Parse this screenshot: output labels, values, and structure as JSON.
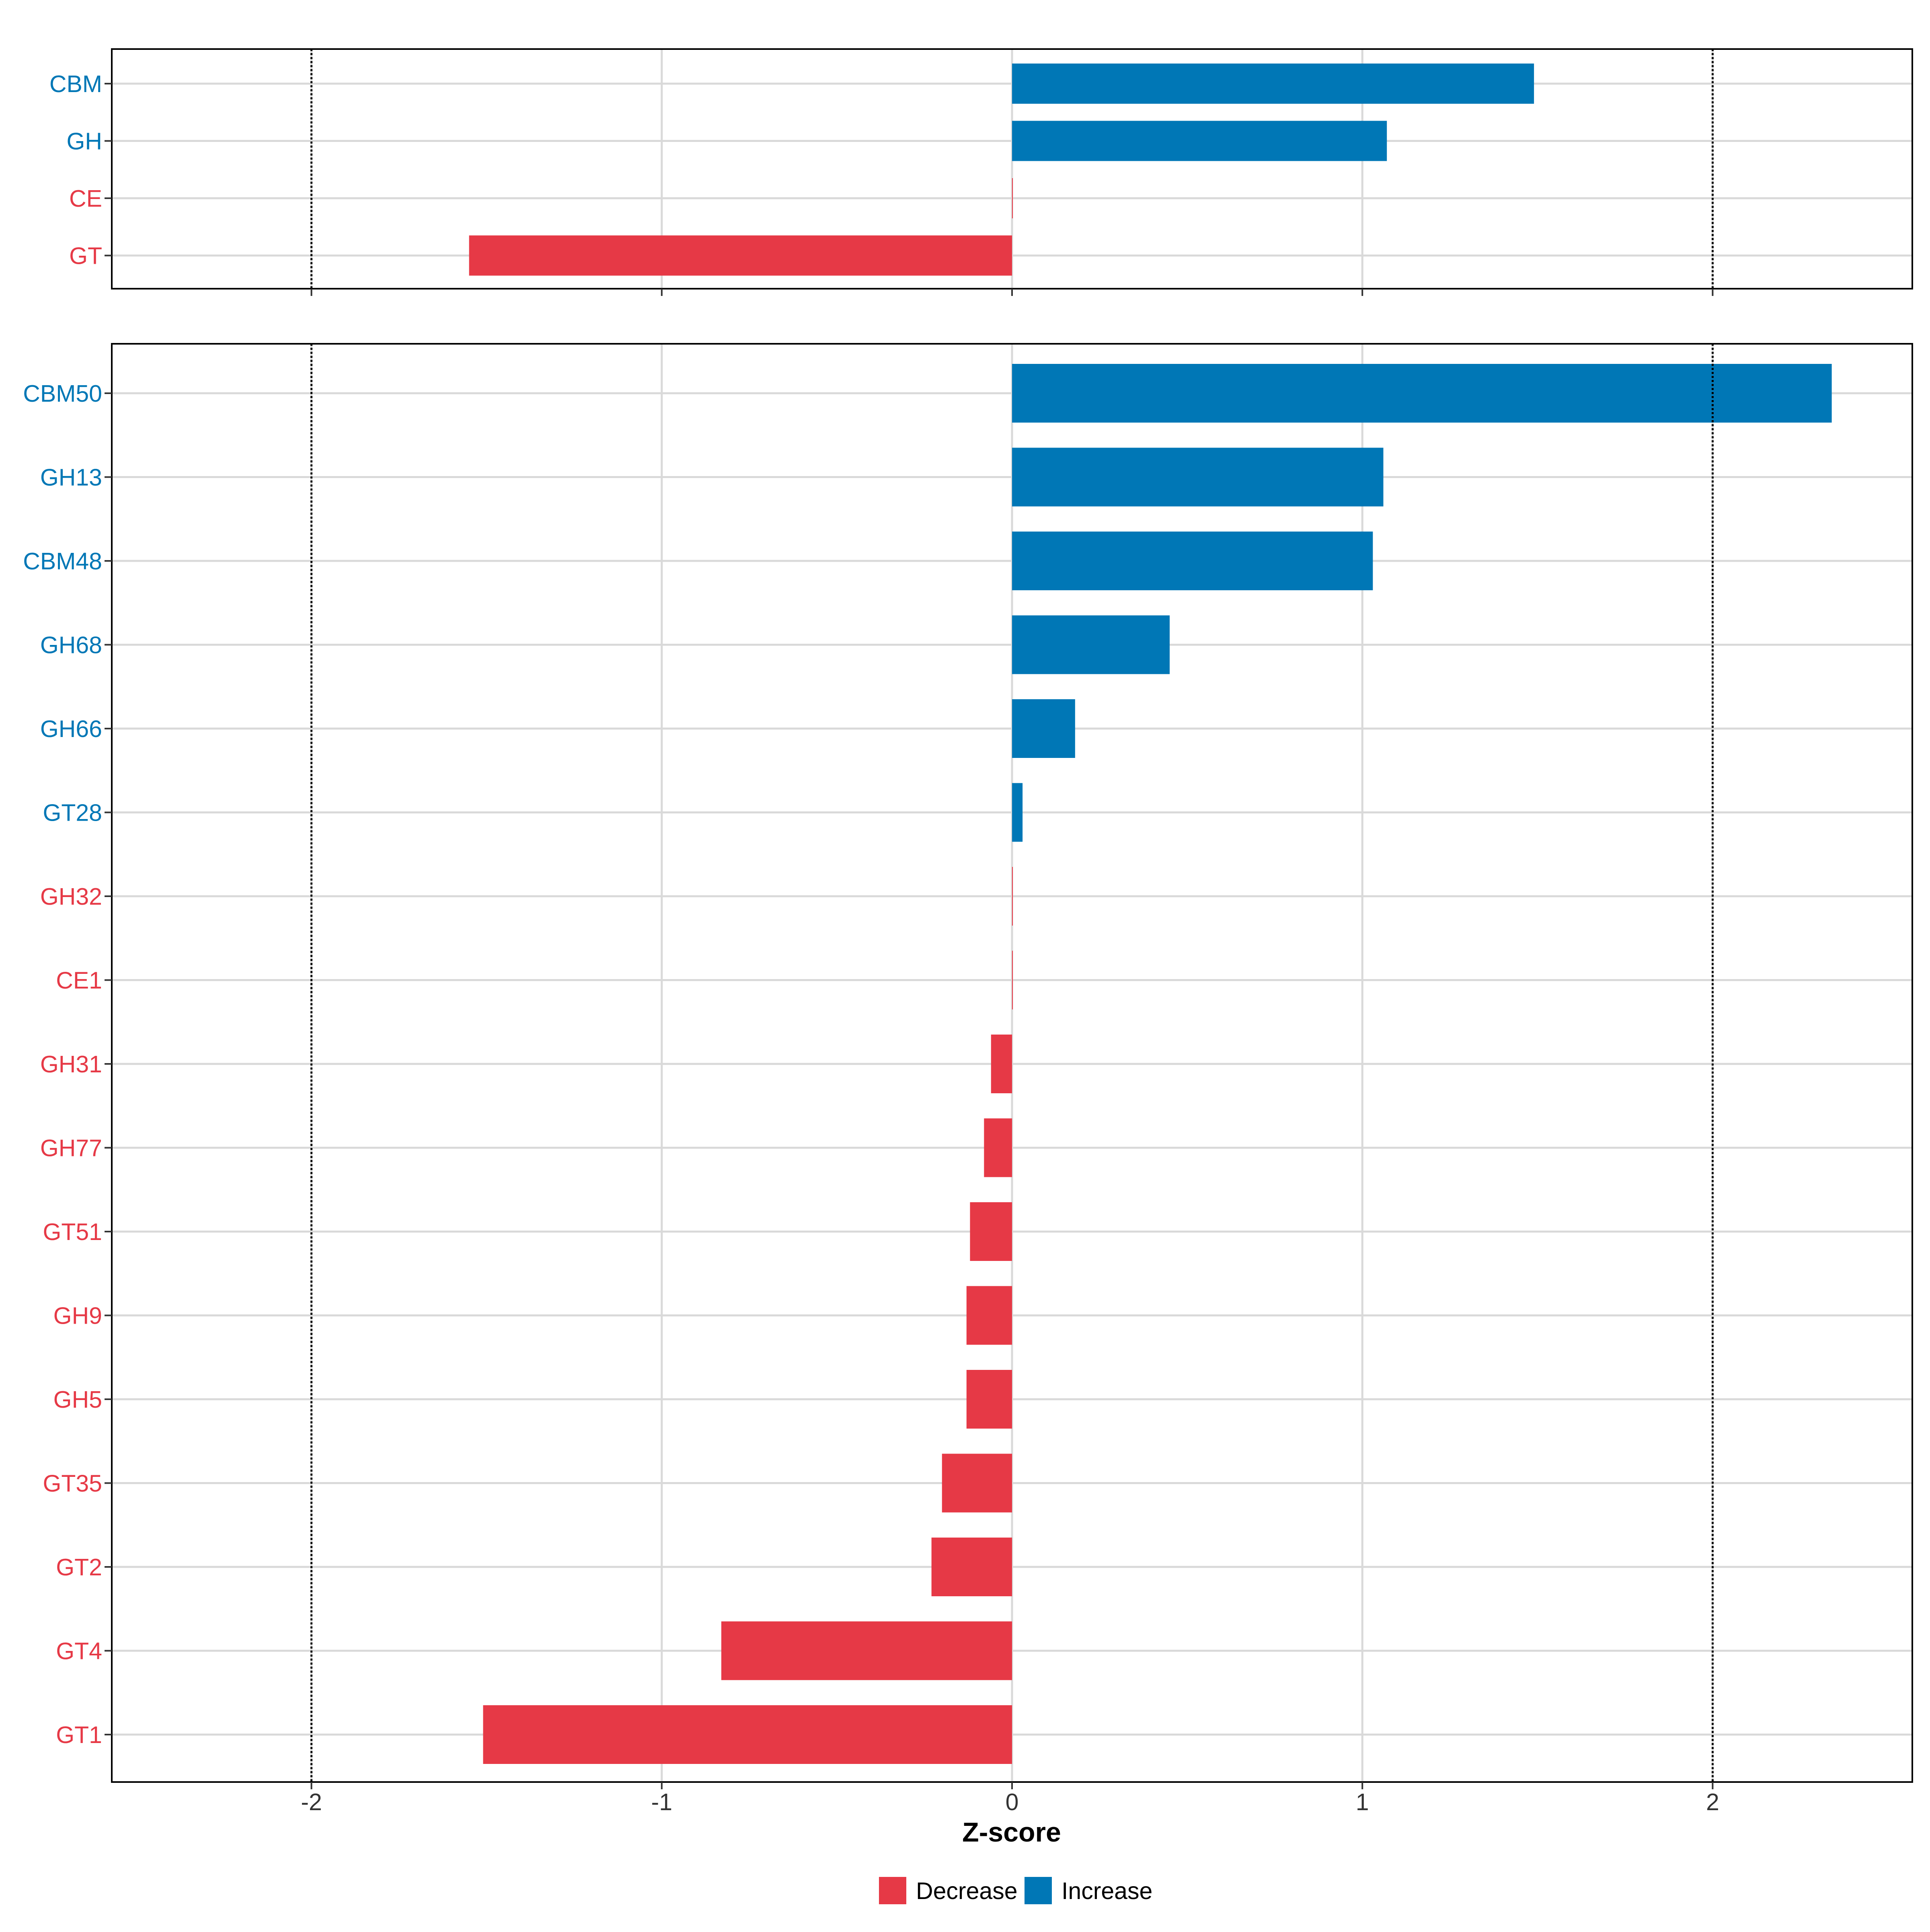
{
  "chart_data": [
    {
      "type": "bar",
      "orientation": "horizontal",
      "categories": [
        "CBM",
        "GH",
        "CE",
        "GT"
      ],
      "values": [
        1.49,
        1.07,
        0.0,
        -1.55
      ],
      "xlim": [
        -2.57,
        2.57
      ],
      "grid": true,
      "reference_lines": [
        -2,
        2
      ]
    },
    {
      "type": "bar",
      "orientation": "horizontal",
      "categories": [
        "CBM50",
        "GH13",
        "CBM48",
        "GH68",
        "GH66",
        "GT28",
        "GH32",
        "CE1",
        "GH31",
        "GH77",
        "GT51",
        "GH9",
        "GH5",
        "GT35",
        "GT2",
        "GT4",
        "GT1"
      ],
      "values": [
        2.34,
        1.06,
        1.03,
        0.45,
        0.18,
        0.03,
        0.0,
        0.0,
        -0.06,
        -0.08,
        -0.12,
        -0.13,
        -0.13,
        -0.2,
        -0.23,
        -0.83,
        -1.51
      ],
      "xlim": [
        -2.57,
        2.57
      ],
      "xticks": [
        -2,
        -1,
        0,
        1,
        2
      ],
      "xlabel": "Z-score",
      "grid": true,
      "reference_lines": [
        -2,
        2
      ]
    }
  ],
  "legend": {
    "placement": "bottom",
    "items": [
      {
        "label": "Decrease",
        "color": "#E63946"
      },
      {
        "label": "Increase",
        "color": "#0077B6"
      }
    ]
  },
  "colors": {
    "decrease": "#E63946",
    "increase": "#0077B6",
    "grid": "#D9D9D9"
  }
}
